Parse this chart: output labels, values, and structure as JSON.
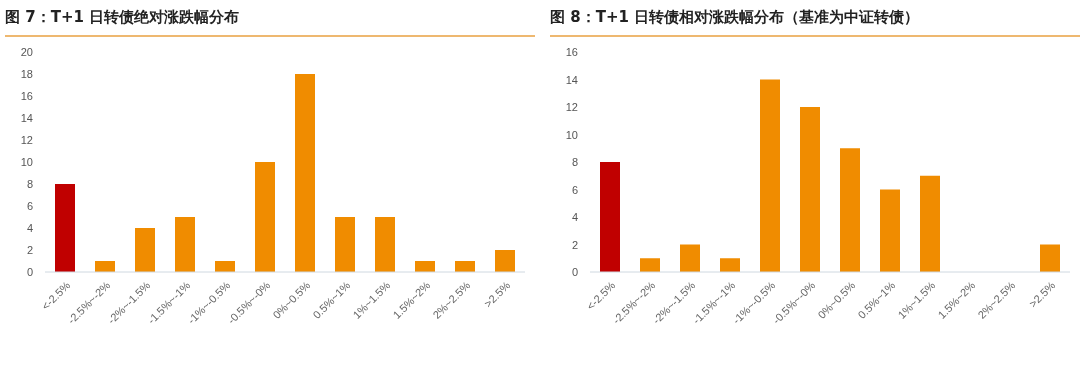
{
  "chart_data": [
    {
      "type": "bar",
      "title": "图 7：T+1 日转债绝对涨跌幅分布",
      "categories": [
        "<-2.5%",
        "-2.5%~-2%",
        "-2%~-1.5%",
        "-1.5%~-1%",
        "-1%~-0.5%",
        "-0.5%~-0%",
        "0%~0.5%",
        "0.5%~1%",
        "1%~1.5%",
        "1.5%~2%",
        "2%~2.5%",
        ">2.5%"
      ],
      "values": [
        8,
        1,
        4,
        5,
        1,
        10,
        18,
        5,
        5,
        1,
        1,
        2
      ],
      "colors": [
        "#c00000",
        "#f08c00",
        "#f08c00",
        "#f08c00",
        "#f08c00",
        "#f08c00",
        "#f08c00",
        "#f08c00",
        "#f08c00",
        "#f08c00",
        "#f08c00",
        "#f08c00"
      ],
      "ylim": [
        0,
        20
      ],
      "yticks": [
        0,
        2,
        4,
        6,
        8,
        10,
        12,
        14,
        16,
        18,
        20
      ],
      "grid": false
    },
    {
      "type": "bar",
      "title": "图 8：T+1 日转债相对涨跌幅分布（基准为中证转债）",
      "categories": [
        "<-2.5%",
        "-2.5%~-2%",
        "-2%~-1.5%",
        "-1.5%~-1%",
        "-1%~-0.5%",
        "-0.5%~-0%",
        "0%~0.5%",
        "0.5%~1%",
        "1%~1.5%",
        "1.5%~2%",
        "2%~2.5%",
        ">2.5%"
      ],
      "values": [
        8,
        1,
        2,
        1,
        14,
        12,
        9,
        6,
        7,
        0,
        0,
        2
      ],
      "colors": [
        "#c00000",
        "#f08c00",
        "#f08c00",
        "#f08c00",
        "#f08c00",
        "#f08c00",
        "#f08c00",
        "#f08c00",
        "#f08c00",
        "#f08c00",
        "#f08c00",
        "#f08c00"
      ],
      "ylim": [
        0,
        16
      ],
      "yticks": [
        0,
        2,
        4,
        6,
        8,
        10,
        12,
        14,
        16
      ],
      "grid": false
    }
  ]
}
